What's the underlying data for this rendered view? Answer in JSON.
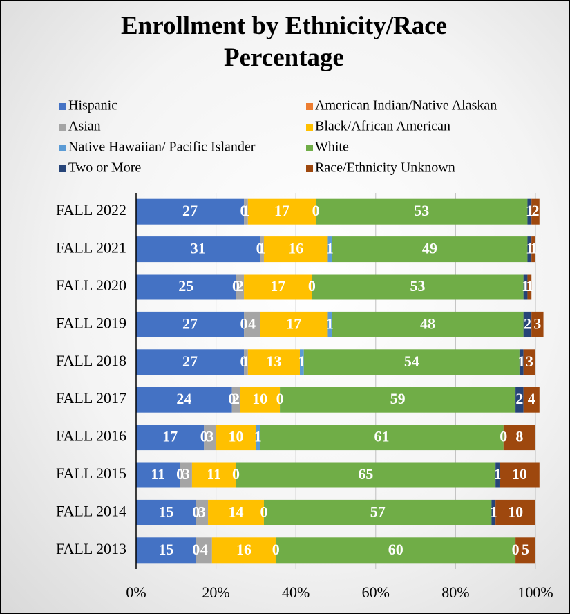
{
  "chart_data": {
    "type": "stacked_barh",
    "title": "Enrollment by Ethnicity/Race Percentage",
    "categories": [
      "FALL 2022",
      "FALL 2021",
      "FALL 2020",
      "FALL 2019",
      "FALL 2018",
      "FALL 2017",
      "FALL 2016",
      "FALL 2015",
      "FALL 2014",
      "FALL 2013"
    ],
    "series": [
      {
        "name": "Hispanic",
        "color": "#4472c4",
        "values": [
          27,
          31,
          25,
          27,
          27,
          24,
          17,
          11,
          15,
          15
        ]
      },
      {
        "name": "American Indian/Native Alaskan",
        "color": "#ed7d31",
        "values": [
          0,
          0,
          0,
          0,
          0,
          0,
          0,
          0,
          0,
          0
        ]
      },
      {
        "name": "Asian",
        "color": "#a5a5a5",
        "values": [
          1,
          1,
          2,
          4,
          1,
          2,
          3,
          3,
          3,
          4
        ]
      },
      {
        "name": "Black/African American",
        "color": "#ffc000",
        "values": [
          17,
          16,
          17,
          17,
          13,
          10,
          10,
          11,
          14,
          16
        ]
      },
      {
        "name": "Native Hawaiian/ Pacific Islander",
        "color": "#5b9bd5",
        "values": [
          0,
          1,
          0,
          1,
          1,
          0,
          1,
          0,
          0,
          0
        ]
      },
      {
        "name": "White",
        "color": "#70ad47",
        "values": [
          53,
          49,
          53,
          48,
          54,
          59,
          61,
          65,
          57,
          60
        ]
      },
      {
        "name": "Two or More",
        "color": "#264478",
        "values": [
          1,
          1,
          1,
          2,
          1,
          2,
          0,
          1,
          1,
          0
        ]
      },
      {
        "name": "Race/Ethnicity Unknown",
        "color": "#9e480e",
        "values": [
          2,
          1,
          1,
          3,
          3,
          4,
          8,
          10,
          10,
          5
        ]
      }
    ],
    "xlim": [
      0,
      100
    ],
    "xticks": [
      {
        "value": 0,
        "label": "0%"
      },
      {
        "value": 20,
        "label": "20%"
      },
      {
        "value": 40,
        "label": "40%"
      },
      {
        "value": 60,
        "label": "60%"
      },
      {
        "value": 80,
        "label": "80%"
      },
      {
        "value": 100,
        "label": "100%"
      }
    ],
    "grid": true,
    "legend": "top"
  }
}
